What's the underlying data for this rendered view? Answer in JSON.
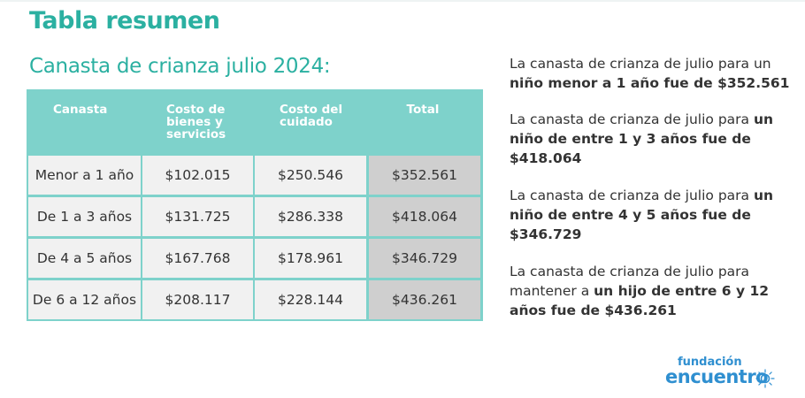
{
  "title": "Tabla resumen",
  "subtitle": "Canasta de crianza julio 2024:",
  "table": {
    "headers": [
      "Canasta",
      "Costo de\nbienes y\nservicios",
      "Costo del\ncuidado",
      "Total"
    ],
    "rows": [
      {
        "canasta": "Menor a 1 año",
        "bienes": "$102.015",
        "cuidado": "$250.546",
        "total": "$352.561"
      },
      {
        "canasta": "De 1 a 3 años",
        "bienes": "$131.725",
        "cuidado": "$286.338",
        "total": "$418.064"
      },
      {
        "canasta": "De 4 a 5 años",
        "bienes": "$167.768",
        "cuidado": "$178.961",
        "total": "$346.729"
      },
      {
        "canasta": "De 6 a 12 años",
        "bienes": "$208.117",
        "cuidado": "$228.144",
        "total": "$436.261"
      }
    ]
  },
  "notes": [
    {
      "parts": [
        {
          "t": "La canasta de crianza de julio para un ",
          "b": false
        },
        {
          "t": "niño menor a  1 año fue de $352.561",
          "b": true
        }
      ]
    },
    {
      "parts": [
        {
          "t": "La canasta de crianza de julio para ",
          "b": false
        },
        {
          "t": "un niño de entre 1 y 3 años fue de $418.064",
          "b": true
        }
      ]
    },
    {
      "parts": [
        {
          "t": "La canasta de crianza de julio para ",
          "b": false
        },
        {
          "t": "un niño de entre 4 y 5 años fue de $346.729",
          "b": true
        }
      ]
    },
    {
      "parts": [
        {
          "t": "La canasta de crianza de julio para mantener a ",
          "b": false
        },
        {
          "t": "un hijo de entre 6 y 12 años fue de $436.261",
          "b": true
        }
      ]
    }
  ],
  "logo": {
    "top": "fundación",
    "bottom": "encuentro",
    "icon": "sun-icon"
  },
  "colors": {
    "accent": "#2bb0a1",
    "header": "#7ed2cb",
    "cell": "#f1f1f1",
    "total_cell": "#cfcfcf",
    "logo": "#2f8fd0"
  }
}
